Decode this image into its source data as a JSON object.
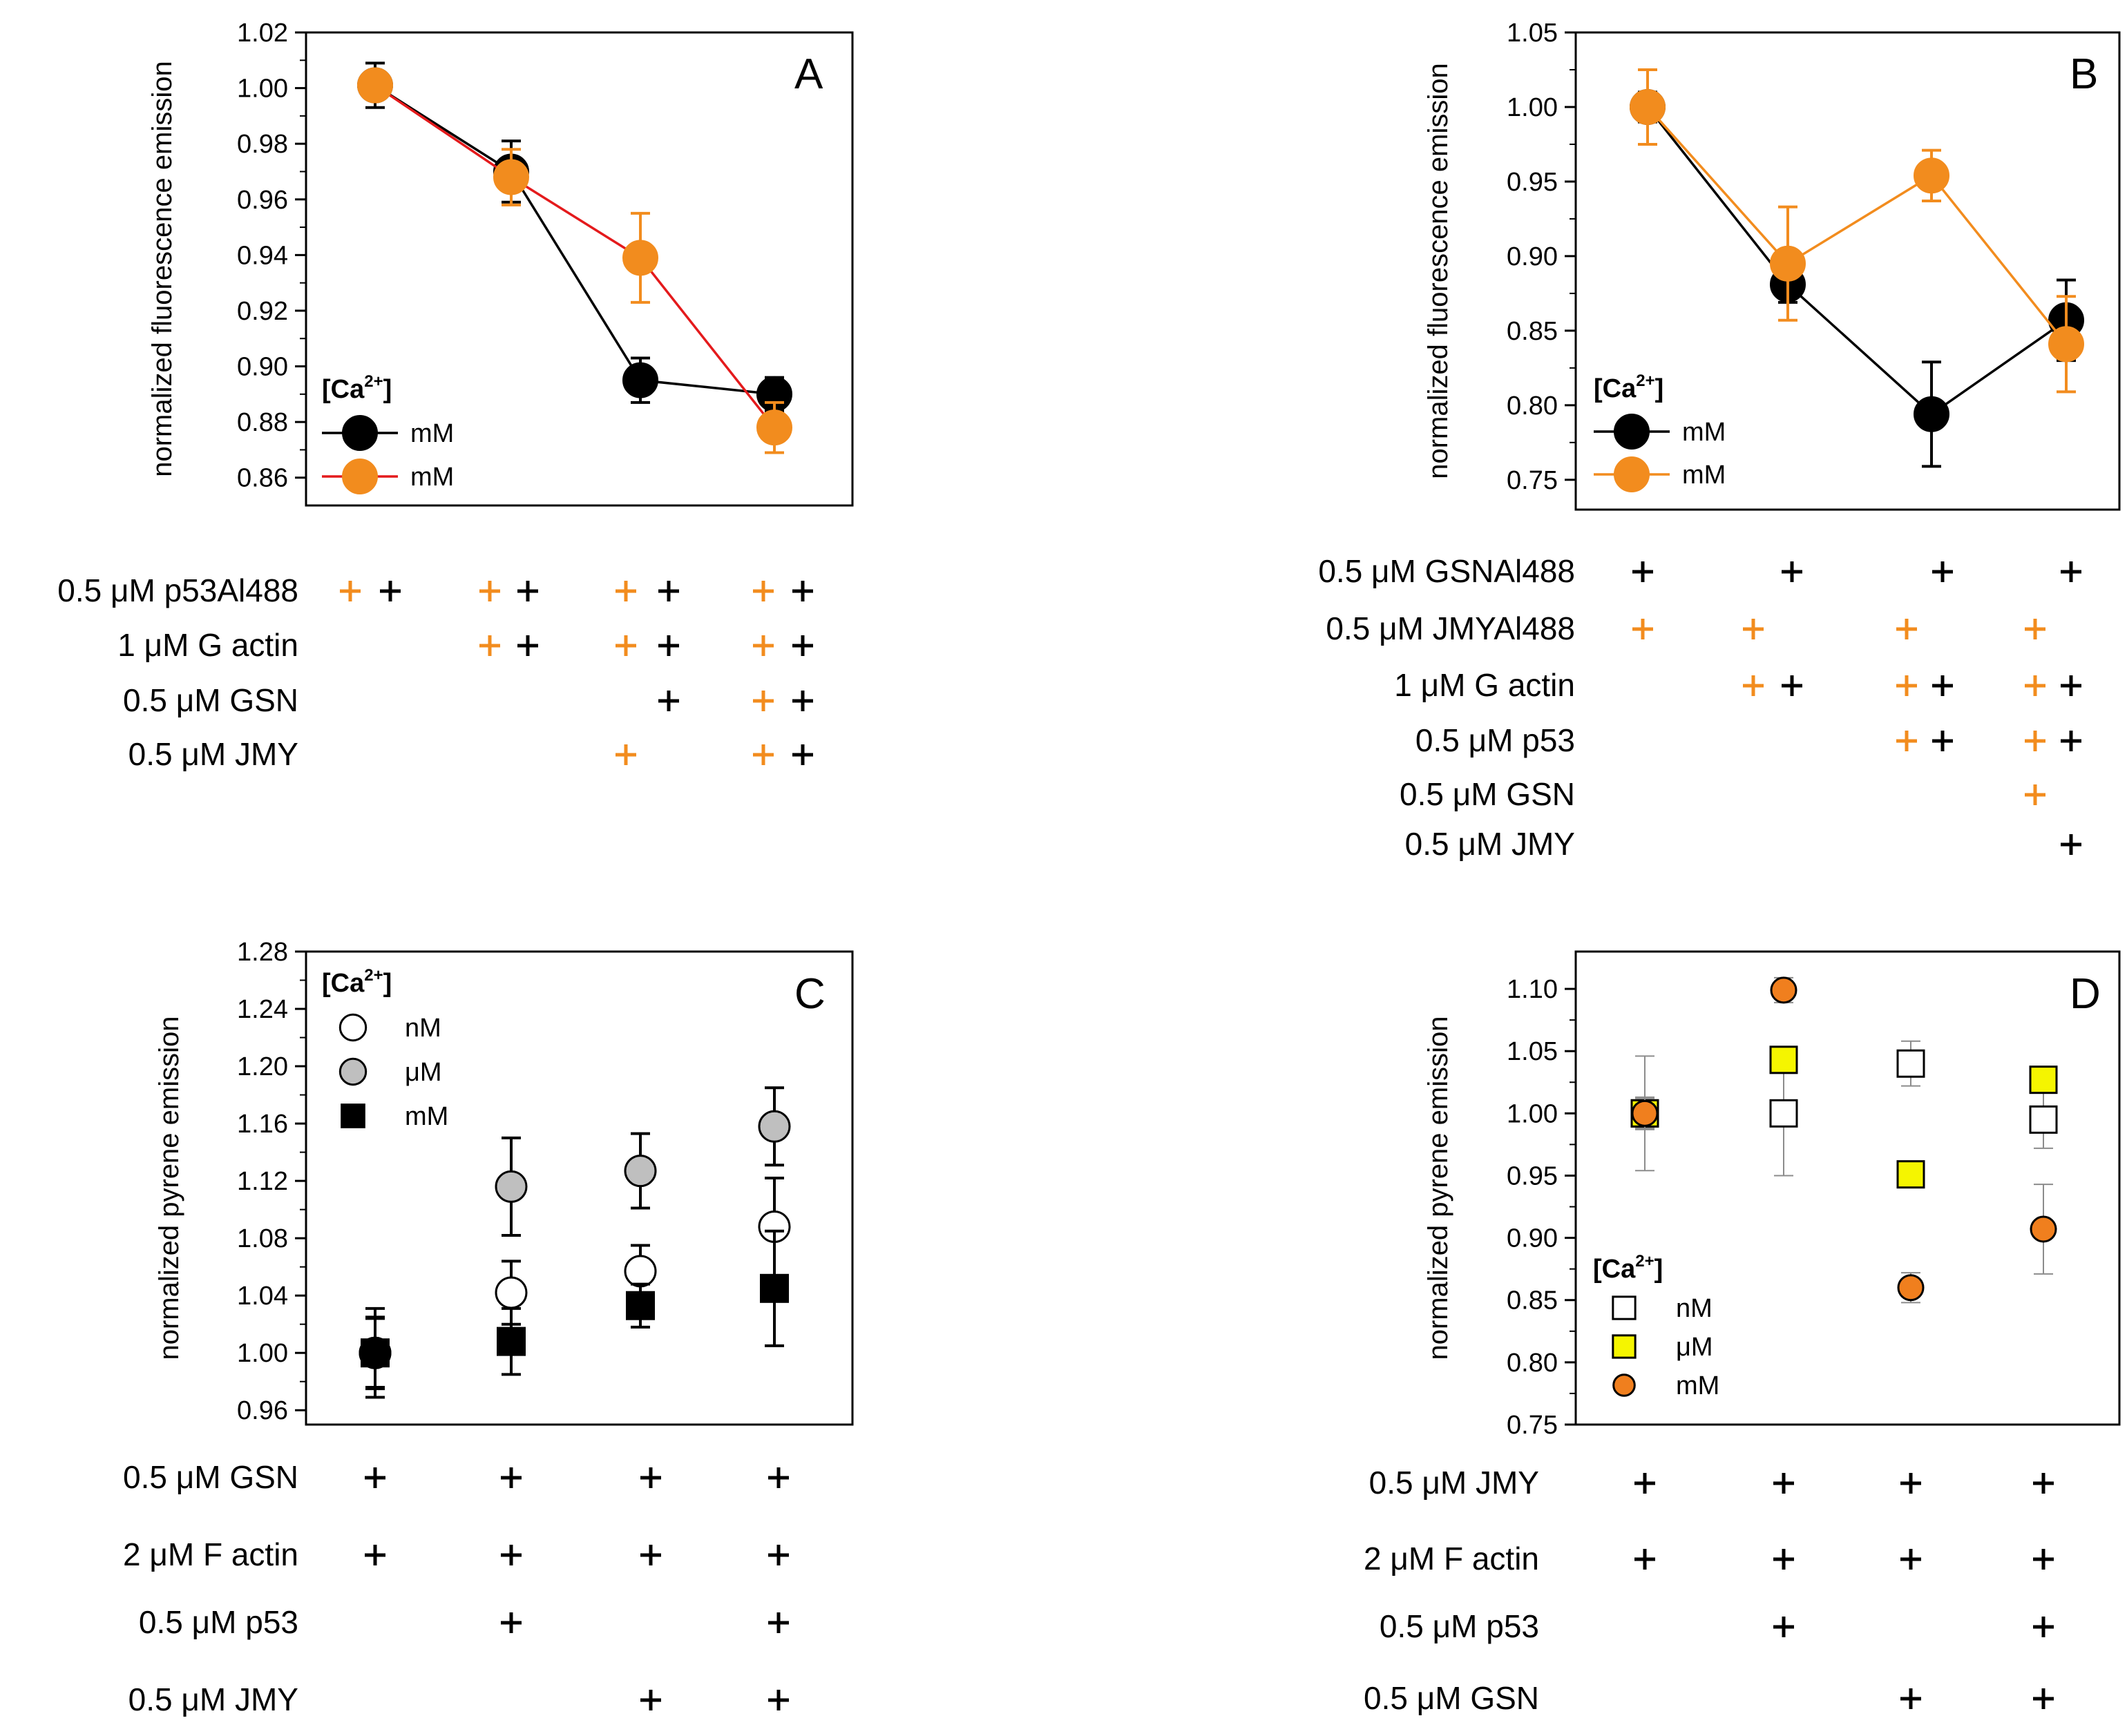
{
  "colors": {
    "black": "#000000",
    "orange": "#F28C1E",
    "red": "#E41A1C",
    "gray": "#BFBFBF",
    "yellow": "#F5F500",
    "orange_marker": "#F07F1E",
    "errbar_gray": "#8C8C8C"
  },
  "chart_data": [
    {
      "panel": "A",
      "type": "line",
      "ylabel": "normalized fluorescence emission",
      "ylim": [
        0.85,
        1.02
      ],
      "yticks": [
        "0.86",
        "0.88",
        "0.90",
        "0.92",
        "0.94",
        "0.96",
        "0.98",
        "1.00",
        "1.02"
      ],
      "legend_title": "[Ca2+]",
      "legend_title_base": "[Ca",
      "legend_title_sup": "2+",
      "legend_title_end": "]",
      "legend_position": "bottom-left",
      "x": [
        1,
        2,
        3,
        4
      ],
      "series": [
        {
          "name": "mM",
          "line": "black",
          "marker": "black",
          "values": [
            1.001,
            0.97,
            0.895,
            0.89
          ],
          "errors": [
            0.008,
            0.011,
            0.008,
            0.006
          ]
        },
        {
          "name": "mM",
          "line": "red",
          "marker": "orange",
          "values": [
            1.001,
            0.968,
            0.939,
            0.878
          ],
          "errors": [
            0.005,
            0.01,
            0.016,
            0.009
          ]
        }
      ],
      "conditions": [
        {
          "label": "0.5 μM p53Al488",
          "marks": [
            [
              "orange",
              "black"
            ],
            [
              "orange",
              "black"
            ],
            [
              "orange",
              "black"
            ],
            [
              "orange",
              "black"
            ]
          ]
        },
        {
          "label": "1 μM G actin",
          "marks": [
            [],
            [
              "orange",
              "black"
            ],
            [
              "orange",
              "black"
            ],
            [
              "orange",
              "black"
            ]
          ]
        },
        {
          "label": "0.5 μM GSN",
          "marks": [
            [],
            [],
            [
              "none",
              "black"
            ],
            [
              "orange",
              "black"
            ]
          ]
        },
        {
          "label": "0.5 μM JMY",
          "marks": [
            [],
            [],
            [
              "orange"
            ],
            [
              "orange",
              "black"
            ]
          ]
        }
      ]
    },
    {
      "panel": "B",
      "type": "line",
      "ylabel": "normalized fluorescence emission",
      "ylim": [
        0.73,
        1.05
      ],
      "yticks": [
        "0.75",
        "0.80",
        "0.85",
        "0.90",
        "0.95",
        "1.00",
        "1.05"
      ],
      "legend_title": "[Ca2+]",
      "legend_title_base": "[Ca",
      "legend_title_sup": "2+",
      "legend_title_end": "]",
      "legend_position": "bottom-left",
      "x": [
        1,
        2,
        3,
        4
      ],
      "series": [
        {
          "name": "mM",
          "line": "black",
          "marker": "black",
          "values": [
            1.0,
            0.881,
            0.794,
            0.857
          ],
          "errors": [
            0.01,
            0.012,
            0.035,
            0.027
          ]
        },
        {
          "name": "mM",
          "line": "orange",
          "marker": "orange",
          "values": [
            1.0,
            0.895,
            0.954,
            0.841
          ],
          "errors": [
            0.025,
            0.038,
            0.017,
            0.032
          ]
        }
      ],
      "conditions": [
        {
          "label": "0.5 μM GSNAl488",
          "marks": [
            [
              "black"
            ],
            [
              "black"
            ],
            [
              "black"
            ],
            [
              "black"
            ]
          ]
        },
        {
          "label": "0.5 μM JMYAl488",
          "marks": [
            [
              "orange"
            ],
            [
              "orange"
            ],
            [
              "orange"
            ],
            [
              "orange"
            ]
          ]
        },
        {
          "label": "1 μM G actin",
          "marks": [
            [],
            [
              "orange",
              "black"
            ],
            [
              "orange",
              "black"
            ],
            [
              "orange",
              "black"
            ]
          ]
        },
        {
          "label": "0.5 μM p53",
          "marks": [
            [],
            [],
            [
              "orange",
              "black"
            ],
            [
              "orange",
              "black"
            ]
          ]
        },
        {
          "label": "0.5 μM GSN",
          "marks": [
            [],
            [],
            [],
            [
              "orange"
            ]
          ]
        },
        {
          "label": "0.5 μM JMY",
          "marks": [
            [],
            [],
            [],
            [
              "black"
            ]
          ]
        }
      ]
    },
    {
      "panel": "C",
      "type": "scatter",
      "ylabel": "normalized pyrene emission",
      "ylim": [
        0.95,
        1.28
      ],
      "yticks": [
        "0.96",
        "1.00",
        "1.04",
        "1.08",
        "1.12",
        "1.16",
        "1.20",
        "1.24",
        "1.28"
      ],
      "legend_title": "[Ca2+]",
      "legend_title_base": "[Ca",
      "legend_title_sup": "2+",
      "legend_title_end": "]",
      "legend_position": "top-left",
      "x": [
        1,
        2,
        3,
        4
      ],
      "series": [
        {
          "name": "nM",
          "marker": "circle-open",
          "values": [
            1.0,
            1.042,
            1.057,
            1.088
          ],
          "errors": [
            0.025,
            0.022,
            0.018,
            0.034
          ]
        },
        {
          "name": "μM",
          "marker": "circle-gray",
          "values": [
            1.0,
            1.116,
            1.127,
            1.158
          ],
          "errors": [
            0.031,
            0.034,
            0.026,
            0.027
          ]
        },
        {
          "name": "mM",
          "marker": "square-black",
          "values": [
            1.0,
            1.008,
            1.033,
            1.045
          ],
          "errors": [
            0.024,
            0.023,
            0.015,
            0.04
          ]
        }
      ],
      "conditions": [
        {
          "label": "0.5 μM GSN",
          "marks": [
            [
              "black"
            ],
            [
              "black"
            ],
            [
              "black"
            ],
            [
              "black"
            ]
          ]
        },
        {
          "label": "2 μM F actin",
          "marks": [
            [
              "black"
            ],
            [
              "black"
            ],
            [
              "black"
            ],
            [
              "black"
            ]
          ]
        },
        {
          "label": "0.5 μM p53",
          "marks": [
            [],
            [
              "black"
            ],
            [],
            [
              "black"
            ]
          ]
        },
        {
          "label": "0.5 μM JMY",
          "marks": [
            [],
            [],
            [
              "black"
            ],
            [
              "black"
            ]
          ]
        }
      ]
    },
    {
      "panel": "D",
      "type": "scatter",
      "ylabel": "normalized pyrene emission",
      "ylim": [
        0.75,
        1.13
      ],
      "yticks": [
        "0.75",
        "0.80",
        "0.85",
        "0.90",
        "0.95",
        "1.00",
        "1.05",
        "1.10"
      ],
      "legend_title": "[Ca2+]",
      "legend_title_base": "[Ca",
      "legend_title_sup": "2+",
      "legend_title_end": "]",
      "legend_position": "bottom-left",
      "x": [
        1,
        2,
        3,
        4
      ],
      "series": [
        {
          "name": "nM",
          "marker": "square-open",
          "values": [
            1.0,
            1.0,
            1.04,
            0.995
          ],
          "errors": [
            0.046,
            0.05,
            0.018,
            0.023
          ]
        },
        {
          "name": "μM",
          "marker": "square-yellow",
          "values": [
            1.0,
            1.043,
            0.951,
            1.027
          ],
          "errors": [
            0.013,
            0.01,
            0.008,
            0.01
          ]
        },
        {
          "name": "mM",
          "marker": "circle-orange",
          "values": [
            1.0,
            1.099,
            0.86,
            0.907
          ],
          "errors": [
            0.012,
            0.01,
            0.012,
            0.036
          ]
        }
      ],
      "conditions": [
        {
          "label": "0.5 μM JMY",
          "marks": [
            [
              "black"
            ],
            [
              "black"
            ],
            [
              "black"
            ],
            [
              "black"
            ]
          ]
        },
        {
          "label": "2 μM F actin",
          "marks": [
            [
              "black"
            ],
            [
              "black"
            ],
            [
              "black"
            ],
            [
              "black"
            ]
          ]
        },
        {
          "label": "0.5 μM p53",
          "marks": [
            [],
            [
              "black"
            ],
            [],
            [
              "black"
            ]
          ]
        },
        {
          "label": "0.5 μM GSN",
          "marks": [
            [],
            [],
            [
              "black"
            ],
            [
              "black"
            ]
          ]
        }
      ]
    }
  ]
}
